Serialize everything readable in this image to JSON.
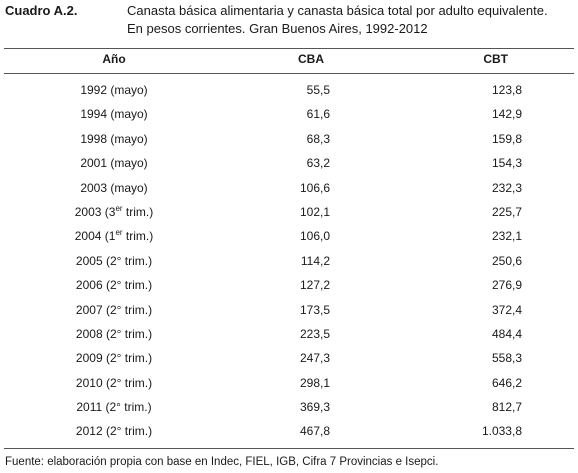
{
  "caption": {
    "label": "Cuadro A.2.",
    "title_line1": "Canasta básica alimentaria y canasta básica total por adulto equivalente.",
    "title_line2": "En pesos corrientes. Gran Buenos Aires, 1992-2012"
  },
  "columns": {
    "year": "Año",
    "cba": "CBA",
    "cbt": "CBT"
  },
  "rows": [
    {
      "year_pre": "1992 (mayo)",
      "year_sup": "",
      "year_post": "",
      "cba": "55,5",
      "cbt": "123,8"
    },
    {
      "year_pre": "1994 (mayo)",
      "year_sup": "",
      "year_post": "",
      "cba": "61,6",
      "cbt": "142,9"
    },
    {
      "year_pre": "1998 (mayo)",
      "year_sup": "",
      "year_post": "",
      "cba": "68,3",
      "cbt": "159,8"
    },
    {
      "year_pre": "2001 (mayo)",
      "year_sup": "",
      "year_post": "",
      "cba": "63,2",
      "cbt": "154,3"
    },
    {
      "year_pre": "2003 (mayo)",
      "year_sup": "",
      "year_post": "",
      "cba": "106,6",
      "cbt": "232,3"
    },
    {
      "year_pre": "2003 (3",
      "year_sup": "er",
      "year_post": " trim.)",
      "cba": "102,1",
      "cbt": "225,7"
    },
    {
      "year_pre": "2004 (1",
      "year_sup": "er",
      "year_post": " trim.)",
      "cba": "106,0",
      "cbt": "232,1"
    },
    {
      "year_pre": "2005 (2° trim.)",
      "year_sup": "",
      "year_post": "",
      "cba": "114,2",
      "cbt": "250,6"
    },
    {
      "year_pre": "2006 (2° trim.)",
      "year_sup": "",
      "year_post": "",
      "cba": "127,2",
      "cbt": "276,9"
    },
    {
      "year_pre": "2007 (2° trim.)",
      "year_sup": "",
      "year_post": "",
      "cba": "173,5",
      "cbt": "372,4"
    },
    {
      "year_pre": "2008 (2°  trim.)",
      "year_sup": "",
      "year_post": "",
      "cba": "223,5",
      "cbt": "484,4"
    },
    {
      "year_pre": "2009 (2° trim.)",
      "year_sup": "",
      "year_post": "",
      "cba": "247,3",
      "cbt": "558,3"
    },
    {
      "year_pre": "2010 (2° trim.)",
      "year_sup": "",
      "year_post": "",
      "cba": "298,1",
      "cbt": "646,2"
    },
    {
      "year_pre": "2011 (2° trim.)",
      "year_sup": "",
      "year_post": "",
      "cba": "369,3",
      "cbt": "812,7"
    },
    {
      "year_pre": "2012 (2° trim.)",
      "year_sup": "",
      "year_post": "",
      "cba": "467,8",
      "cbt": "1.033,8"
    }
  ],
  "source": "Fuente: elaboración propia con base en Indec, FIEL, IGB, Cifra 7 Provincias e Isepci."
}
